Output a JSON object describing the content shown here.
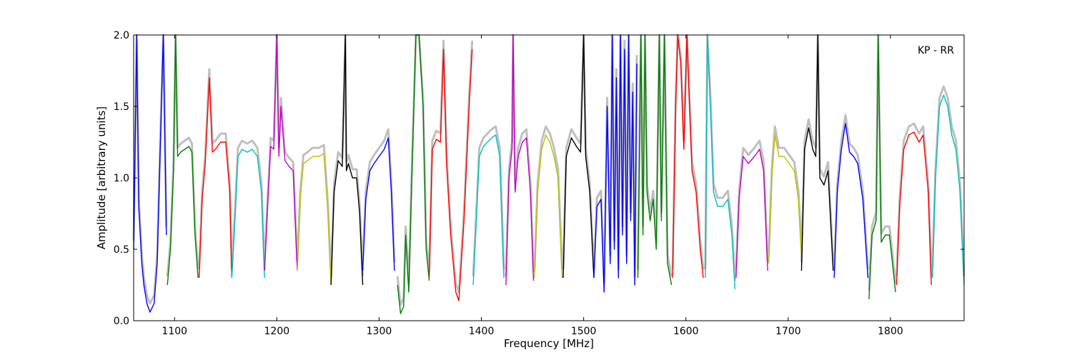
{
  "chart_data": {
    "type": "line",
    "title": "",
    "annotation": "KP - RR",
    "xlabel": "Frequency [MHz]",
    "ylabel": "Amplitude [arbitrary units]",
    "xlim": [
      1060,
      1872
    ],
    "ylim": [
      0.0,
      2.0
    ],
    "xticks": [
      1100,
      1200,
      1300,
      1400,
      1500,
      1600,
      1700,
      1800
    ],
    "xtick_labels": [
      "1100",
      "1200",
      "1300",
      "1400",
      "1500",
      "1600",
      "1700",
      "1800"
    ],
    "yticks": [
      0.0,
      0.5,
      1.0,
      1.5,
      2.0
    ],
    "ytick_labels": [
      "0.0",
      "0.5",
      "1.0",
      "1.5",
      "2.0"
    ],
    "grid": false,
    "legend": "none",
    "colors": {
      "background": "#ffffff",
      "envelope": "#bfbfbf",
      "blue": "#0000ff",
      "green": "#008000",
      "red": "#ff0000",
      "cyan": "#00bfbf",
      "magenta": "#bf00bf",
      "olive": "#bfbf00",
      "black": "#000000"
    },
    "series": [
      {
        "color": "blue",
        "x": [
          1060,
          1063,
          1065,
          1068,
          1070,
          1073,
          1076,
          1080,
          1083,
          1086,
          1089,
          1092
        ],
        "y": [
          0.5,
          2.0,
          0.8,
          0.4,
          0.25,
          0.12,
          0.06,
          0.12,
          0.4,
          1.2,
          2.0,
          0.6
        ]
      },
      {
        "color": "green",
        "x": [
          1093,
          1096,
          1099,
          1101,
          1103,
          1106,
          1110,
          1114,
          1117,
          1120,
          1123
        ],
        "y": [
          0.25,
          0.5,
          1.05,
          2.0,
          1.15,
          1.18,
          1.2,
          1.22,
          1.18,
          0.6,
          0.3
        ]
      },
      {
        "color": "red",
        "x": [
          1124,
          1127,
          1130,
          1134,
          1137,
          1140,
          1145,
          1150,
          1154,
          1156
        ],
        "y": [
          0.3,
          0.85,
          1.1,
          1.7,
          1.18,
          1.2,
          1.25,
          1.25,
          0.9,
          0.3
        ]
      },
      {
        "color": "cyan",
        "x": [
          1156,
          1159,
          1162,
          1166,
          1171,
          1176,
          1181,
          1185,
          1188
        ],
        "y": [
          0.3,
          0.7,
          1.15,
          1.2,
          1.18,
          1.2,
          1.15,
          0.9,
          0.3
        ]
      },
      {
        "color": "magenta",
        "x": [
          1188,
          1191,
          1194,
          1197,
          1200,
          1202,
          1204,
          1208,
          1212,
          1216,
          1220
        ],
        "y": [
          0.35,
          0.8,
          1.22,
          1.2,
          2.0,
          1.15,
          1.5,
          1.12,
          1.08,
          1.05,
          0.35
        ]
      },
      {
        "color": "olive",
        "x": [
          1220,
          1223,
          1226,
          1230,
          1235,
          1241,
          1246,
          1250,
          1253
        ],
        "y": [
          0.35,
          0.85,
          1.1,
          1.12,
          1.15,
          1.15,
          1.17,
          0.75,
          0.25
        ]
      },
      {
        "color": "black",
        "x": [
          1253,
          1256,
          1260,
          1264,
          1267,
          1268,
          1270,
          1274,
          1278,
          1281,
          1284
        ],
        "y": [
          0.25,
          0.9,
          1.12,
          1.08,
          2.0,
          1.05,
          1.1,
          1.0,
          1.0,
          0.75,
          0.25
        ]
      },
      {
        "color": "blue",
        "x": [
          1284,
          1287,
          1291,
          1295,
          1300,
          1305,
          1309,
          1312,
          1315
        ],
        "y": [
          0.35,
          0.85,
          1.05,
          1.1,
          1.15,
          1.2,
          1.28,
          0.9,
          0.35
        ]
      },
      {
        "color": "green",
        "x": [
          1318,
          1321,
          1324,
          1326,
          1329,
          1332,
          1336,
          1339,
          1343,
          1346,
          1349
        ],
        "y": [
          0.25,
          0.05,
          0.1,
          0.6,
          0.2,
          1.0,
          2.0,
          2.0,
          1.5,
          0.5,
          0.28
        ]
      },
      {
        "color": "red",
        "x": [
          1349,
          1352,
          1356,
          1360,
          1363,
          1366,
          1370,
          1375,
          1378,
          1383,
          1388,
          1391
        ],
        "y": [
          0.3,
          1.2,
          1.27,
          1.25,
          1.9,
          1.1,
          0.6,
          0.2,
          0.14,
          0.7,
          1.5,
          1.9
        ]
      },
      {
        "color": "cyan",
        "x": [
          1392,
          1395,
          1398,
          1402,
          1406,
          1410,
          1414,
          1418,
          1422
        ],
        "y": [
          0.25,
          0.7,
          1.15,
          1.22,
          1.25,
          1.28,
          1.3,
          1.15,
          0.3
        ]
      },
      {
        "color": "magenta",
        "x": [
          1424,
          1427,
          1430,
          1431,
          1433,
          1436,
          1440,
          1444,
          1448,
          1451
        ],
        "y": [
          0.25,
          1.0,
          1.2,
          2.0,
          0.9,
          1.15,
          1.25,
          1.28,
          0.9,
          0.28
        ]
      },
      {
        "color": "olive",
        "x": [
          1452,
          1455,
          1459,
          1463,
          1467,
          1471,
          1475,
          1479
        ],
        "y": [
          0.3,
          0.9,
          1.2,
          1.3,
          1.25,
          1.15,
          1.0,
          0.3
        ]
      },
      {
        "color": "black",
        "x": [
          1480,
          1483,
          1488,
          1493,
          1497,
          1500,
          1502,
          1506,
          1510
        ],
        "y": [
          0.3,
          1.15,
          1.28,
          1.22,
          1.18,
          2.0,
          1.15,
          0.9,
          0.3
        ]
      },
      {
        "color": "blue",
        "x": [
          1510,
          1513,
          1517,
          1520,
          1523,
          1526,
          1528,
          1530,
          1532,
          1534,
          1536,
          1538,
          1540,
          1542,
          1544,
          1546,
          1548,
          1550,
          1552
        ],
        "y": [
          0.3,
          0.8,
          0.85,
          0.2,
          1.5,
          0.4,
          2.0,
          0.5,
          1.7,
          0.3,
          2.0,
          0.6,
          1.9,
          0.4,
          2.0,
          0.7,
          1.6,
          0.25,
          1.8
        ]
      },
      {
        "color": "green",
        "x": [
          1553,
          1556,
          1558,
          1560,
          1562,
          1565,
          1568,
          1571,
          1574,
          1576,
          1579,
          1582,
          1586
        ],
        "y": [
          0.3,
          2.0,
          0.6,
          2.0,
          0.9,
          0.7,
          0.85,
          0.5,
          2.0,
          0.7,
          2.0,
          0.4,
          0.25
        ]
      },
      {
        "color": "red",
        "x": [
          1587,
          1590,
          1592,
          1595,
          1598,
          1601,
          1603,
          1606,
          1610,
          1614,
          1617
        ],
        "y": [
          0.3,
          1.5,
          2.0,
          1.8,
          1.2,
          2.0,
          1.6,
          1.05,
          0.9,
          0.5,
          0.3
        ]
      },
      {
        "color": "cyan",
        "x": [
          1619,
          1621,
          1624,
          1627,
          1631,
          1636,
          1641,
          1645,
          1648
        ],
        "y": [
          0.3,
          2.0,
          1.5,
          0.9,
          0.8,
          0.8,
          0.85,
          0.6,
          0.22
        ]
      },
      {
        "color": "magenta",
        "x": [
          1649,
          1652,
          1656,
          1661,
          1667,
          1672,
          1676,
          1680
        ],
        "y": [
          0.3,
          0.85,
          1.15,
          1.1,
          1.15,
          1.2,
          1.05,
          0.35
        ]
      },
      {
        "color": "olive",
        "x": [
          1681,
          1684,
          1687,
          1691,
          1696,
          1701,
          1706,
          1710,
          1713
        ],
        "y": [
          0.4,
          1.0,
          1.3,
          1.15,
          1.15,
          1.1,
          1.05,
          0.85,
          0.45
        ]
      },
      {
        "color": "black",
        "x": [
          1713,
          1716,
          1720,
          1724,
          1727,
          1729,
          1731,
          1735,
          1739,
          1744
        ],
        "y": [
          0.35,
          1.2,
          1.35,
          1.2,
          1.15,
          2.0,
          1.0,
          0.95,
          1.05,
          0.35
        ]
      },
      {
        "color": "blue",
        "x": [
          1745,
          1748,
          1752,
          1756,
          1760,
          1764,
          1768,
          1773,
          1778
        ],
        "y": [
          0.3,
          0.9,
          1.2,
          1.38,
          1.18,
          1.15,
          1.1,
          0.85,
          0.3
        ]
      },
      {
        "color": "green",
        "x": [
          1779,
          1782,
          1786,
          1788,
          1791,
          1795,
          1799,
          1802,
          1805
        ],
        "y": [
          0.15,
          0.6,
          0.7,
          2.0,
          0.55,
          0.6,
          0.6,
          0.4,
          0.2
        ]
      },
      {
        "color": "red",
        "x": [
          1806,
          1809,
          1813,
          1818,
          1823,
          1828,
          1832,
          1837,
          1840
        ],
        "y": [
          0.25,
          0.8,
          1.2,
          1.3,
          1.32,
          1.25,
          1.3,
          0.9,
          0.25
        ]
      },
      {
        "color": "cyan",
        "x": [
          1841,
          1844,
          1848,
          1852,
          1856,
          1860,
          1864,
          1868,
          1872
        ],
        "y": [
          0.3,
          1.0,
          1.5,
          1.58,
          1.5,
          1.3,
          1.2,
          0.9,
          0.25
        ]
      }
    ]
  }
}
